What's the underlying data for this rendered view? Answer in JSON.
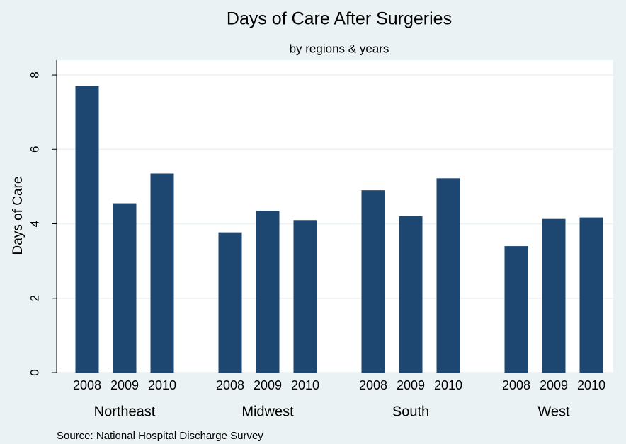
{
  "chart_data": {
    "type": "bar",
    "title": "Days of Care After Surgeries",
    "subtitle": "by regions & years",
    "y_label": "Days of Care",
    "note": "Source: National Hospital Discharge Survey",
    "color": "#1d4670",
    "grid": true,
    "ylim": [
      0,
      8.4
    ],
    "yticks": [
      0,
      2,
      4,
      6,
      8
    ],
    "groups": [
      {
        "name": "Northeast",
        "categories": [
          "2008",
          "2009",
          "2010"
        ],
        "values": [
          7.7,
          4.55,
          5.35
        ]
      },
      {
        "name": "Midwest",
        "categories": [
          "2008",
          "2009",
          "2010"
        ],
        "values": [
          3.77,
          4.35,
          4.1
        ]
      },
      {
        "name": "South",
        "categories": [
          "2008",
          "2009",
          "2010"
        ],
        "values": [
          4.9,
          4.2,
          5.22
        ]
      },
      {
        "name": "West",
        "categories": [
          "2008",
          "2009",
          "2010"
        ],
        "values": [
          3.4,
          4.13,
          4.17
        ]
      }
    ]
  }
}
